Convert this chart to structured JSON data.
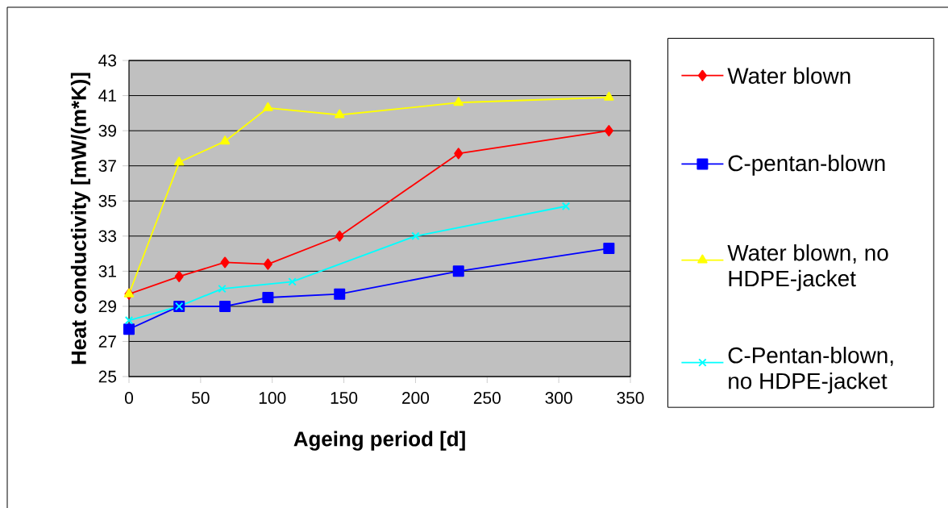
{
  "chart_data": {
    "type": "line",
    "xlabel": "Ageing period [d]",
    "ylabel": "Heat conductivity [mW/(m*K)]",
    "xlim": [
      0,
      350
    ],
    "xticks": [
      0,
      50,
      100,
      150,
      200,
      250,
      300,
      350
    ],
    "ylim": [
      25,
      43
    ],
    "yticks": [
      25,
      27,
      29,
      31,
      33,
      35,
      37,
      39,
      41,
      43
    ],
    "grid": "y",
    "legend": "right",
    "series": [
      {
        "name": "Water blown",
        "color": "#ff0000",
        "marker": "diamond",
        "x": [
          0,
          35,
          67,
          97,
          147,
          230,
          335
        ],
        "values": [
          29.7,
          30.7,
          31.5,
          31.4,
          33.0,
          37.7,
          39.0
        ]
      },
      {
        "name": "C-pentan-blown",
        "color": "#0000ff",
        "marker": "square",
        "x": [
          0,
          35,
          67,
          97,
          147,
          230,
          335
        ],
        "values": [
          27.7,
          29.0,
          29.0,
          29.5,
          29.7,
          31.0,
          32.3
        ]
      },
      {
        "name": "Water blown, no HDPE-jacket",
        "color": "#ffff00",
        "marker": "triangle",
        "x": [
          0,
          35,
          67,
          97,
          147,
          230,
          335
        ],
        "values": [
          29.7,
          37.2,
          38.4,
          40.3,
          39.9,
          40.6,
          40.9
        ]
      },
      {
        "name": "C-Pentan-blown, no HDPE-jacket",
        "color": "#00ffff",
        "marker": "cross",
        "x": [
          0,
          35,
          65,
          114,
          200,
          305
        ],
        "values": [
          28.2,
          29.0,
          30.0,
          30.4,
          33.0,
          34.7
        ]
      }
    ]
  }
}
